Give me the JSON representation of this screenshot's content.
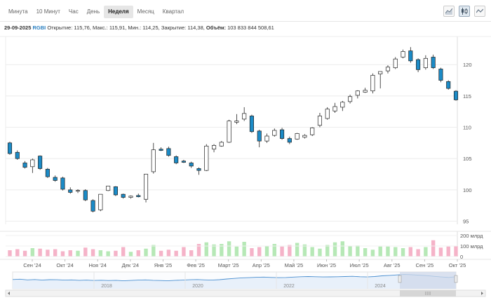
{
  "tabs": [
    {
      "label": "Минута",
      "active": false
    },
    {
      "label": "10 Минут",
      "active": false
    },
    {
      "label": "Час",
      "active": false
    },
    {
      "label": "День",
      "active": false
    },
    {
      "label": "Неделя",
      "active": true
    },
    {
      "label": "Месяц",
      "active": false
    },
    {
      "label": "Квартал",
      "active": false
    }
  ],
  "info": {
    "date": "29-09-2025",
    "ticker": "RGBI",
    "open_label": "Открытие:",
    "open": "115,76",
    "high_label": "Макс.:",
    "high": "115,91",
    "low_label": "Мин.:",
    "low": "114,25",
    "close_label": "Закрытие:",
    "close": "114,38",
    "volume_label": "Объём:",
    "volume": "103 833 844 508,61"
  },
  "icons": [
    "area-chart-icon",
    "candlestick-icon",
    "line-chart-icon"
  ],
  "colors": {
    "up_fill": "#ffffff",
    "down_fill": "#1b8bc7",
    "vol_up": "#b6e8b6",
    "vol_down": "#f5b3c8",
    "navigator_line": "#4a8fd0",
    "navigator_select": "#cfd8ea"
  },
  "chart_data": {
    "type": "candlestick",
    "title": "",
    "yticks": [
      "95",
      "100",
      "105",
      "110",
      "115",
      "120"
    ],
    "ylim": [
      94.5,
      124.5
    ],
    "xticks": [
      "Сен '24",
      "Окт '24",
      "Ноя '24",
      "Дек '24",
      "Янв '25",
      "Фев '25",
      "Март '25",
      "Апр '25",
      "Май '25",
      "Июн '25",
      "Июл '25",
      "Авг '25",
      "Сен '25",
      "Окт '25"
    ],
    "volume_ticks": [
      "0",
      "100 млрд",
      "200 млрд"
    ],
    "volume_max": 200,
    "candles": [
      {
        "o": 107.5,
        "h": 107.7,
        "l": 105.6,
        "c": 105.8
      },
      {
        "o": 106.0,
        "h": 106.3,
        "l": 104.8,
        "c": 105.0
      },
      {
        "o": 104.3,
        "h": 104.6,
        "l": 103.4,
        "c": 103.6
      },
      {
        "o": 103.7,
        "h": 105.0,
        "l": 102.7,
        "c": 104.8
      },
      {
        "o": 105.4,
        "h": 105.5,
        "l": 103.2,
        "c": 103.4
      },
      {
        "o": 103.3,
        "h": 103.5,
        "l": 101.9,
        "c": 102.1
      },
      {
        "o": 102.0,
        "h": 102.3,
        "l": 101.3,
        "c": 101.5
      },
      {
        "o": 101.9,
        "h": 102.1,
        "l": 99.9,
        "c": 100.1
      },
      {
        "o": 100.0,
        "h": 100.4,
        "l": 99.4,
        "c": 99.6
      },
      {
        "o": 99.8,
        "h": 100.1,
        "l": 99.5,
        "c": 99.9
      },
      {
        "o": 99.9,
        "h": 100.1,
        "l": 98.2,
        "c": 98.4
      },
      {
        "o": 98.3,
        "h": 98.5,
        "l": 96.4,
        "c": 96.6
      },
      {
        "o": 96.8,
        "h": 99.3,
        "l": 96.6,
        "c": 99.3
      },
      {
        "o": 99.9,
        "h": 100.6,
        "l": 99.8,
        "c": 100.6
      },
      {
        "o": 100.5,
        "h": 100.6,
        "l": 99.0,
        "c": 99.2
      },
      {
        "o": 99.3,
        "h": 99.4,
        "l": 98.6,
        "c": 98.8
      },
      {
        "o": 98.8,
        "h": 99.1,
        "l": 98.6,
        "c": 99.0
      },
      {
        "o": 99.1,
        "h": 99.4,
        "l": 98.8,
        "c": 98.9
      },
      {
        "o": 98.5,
        "h": 102.5,
        "l": 98.0,
        "c": 102.5
      },
      {
        "o": 102.9,
        "h": 107.5,
        "l": 102.6,
        "c": 106.4
      },
      {
        "o": 106.5,
        "h": 106.8,
        "l": 106.2,
        "c": 106.3
      },
      {
        "o": 106.6,
        "h": 106.9,
        "l": 105.3,
        "c": 105.5
      },
      {
        "o": 105.3,
        "h": 105.5,
        "l": 104.1,
        "c": 104.3
      },
      {
        "o": 104.6,
        "h": 104.8,
        "l": 104.3,
        "c": 104.4
      },
      {
        "o": 104.3,
        "h": 104.5,
        "l": 103.5,
        "c": 103.8
      },
      {
        "o": 103.4,
        "h": 103.6,
        "l": 102.4,
        "c": 103.1
      },
      {
        "o": 103.1,
        "h": 107.3,
        "l": 103.0,
        "c": 107.0
      },
      {
        "o": 106.5,
        "h": 107.3,
        "l": 106.0,
        "c": 107.1
      },
      {
        "o": 107.0,
        "h": 107.8,
        "l": 106.9,
        "c": 107.6
      },
      {
        "o": 107.6,
        "h": 111.2,
        "l": 107.5,
        "c": 111.0
      },
      {
        "o": 110.8,
        "h": 112.1,
        "l": 110.5,
        "c": 111.0
      },
      {
        "o": 111.3,
        "h": 113.2,
        "l": 111.0,
        "c": 112.2
      },
      {
        "o": 111.8,
        "h": 112.0,
        "l": 109.1,
        "c": 109.3
      },
      {
        "o": 109.4,
        "h": 109.6,
        "l": 106.8,
        "c": 107.8
      },
      {
        "o": 107.8,
        "h": 109.0,
        "l": 107.5,
        "c": 108.6
      },
      {
        "o": 108.7,
        "h": 109.8,
        "l": 108.5,
        "c": 109.5
      },
      {
        "o": 109.6,
        "h": 109.9,
        "l": 108.0,
        "c": 108.2
      },
      {
        "o": 108.2,
        "h": 108.5,
        "l": 107.3,
        "c": 107.6
      },
      {
        "o": 108.1,
        "h": 109.1,
        "l": 108.0,
        "c": 109.0
      },
      {
        "o": 108.4,
        "h": 108.9,
        "l": 108.2,
        "c": 108.7
      },
      {
        "o": 108.8,
        "h": 110.0,
        "l": 108.6,
        "c": 109.9
      },
      {
        "o": 110.3,
        "h": 112.3,
        "l": 110.0,
        "c": 111.8
      },
      {
        "o": 111.4,
        "h": 113.2,
        "l": 111.2,
        "c": 112.9
      },
      {
        "o": 112.6,
        "h": 113.9,
        "l": 112.3,
        "c": 113.3
      },
      {
        "o": 113.2,
        "h": 114.2,
        "l": 112.6,
        "c": 114.0
      },
      {
        "o": 114.1,
        "h": 115.2,
        "l": 113.8,
        "c": 114.9
      },
      {
        "o": 115.1,
        "h": 115.9,
        "l": 114.6,
        "c": 115.8
      },
      {
        "o": 115.6,
        "h": 116.3,
        "l": 115.5,
        "c": 115.9
      },
      {
        "o": 115.8,
        "h": 118.6,
        "l": 115.4,
        "c": 118.3
      },
      {
        "o": 118.5,
        "h": 118.9,
        "l": 116.2,
        "c": 118.9
      },
      {
        "o": 119.0,
        "h": 119.9,
        "l": 118.6,
        "c": 119.6
      },
      {
        "o": 119.5,
        "h": 121.2,
        "l": 119.3,
        "c": 120.9
      },
      {
        "o": 121.2,
        "h": 122.4,
        "l": 121.0,
        "c": 122.1
      },
      {
        "o": 122.2,
        "h": 122.8,
        "l": 120.3,
        "c": 120.6
      },
      {
        "o": 120.8,
        "h": 121.0,
        "l": 118.8,
        "c": 119.2
      },
      {
        "o": 119.5,
        "h": 121.5,
        "l": 119.2,
        "c": 121.0
      },
      {
        "o": 121.2,
        "h": 121.6,
        "l": 119.3,
        "c": 119.5
      },
      {
        "o": 119.3,
        "h": 119.5,
        "l": 117.2,
        "c": 117.5
      },
      {
        "o": 117.3,
        "h": 117.5,
        "l": 116.0,
        "c": 116.2
      },
      {
        "o": 115.76,
        "h": 115.91,
        "l": 114.25,
        "c": 114.38
      }
    ],
    "volume": [
      60,
      70,
      55,
      80,
      75,
      65,
      70,
      50,
      60,
      55,
      85,
      70,
      60,
      50,
      55,
      90,
      45,
      60,
      75,
      110,
      55,
      65,
      55,
      90,
      60,
      120,
      135,
      115,
      120,
      145,
      95,
      140,
      80,
      90,
      100,
      120,
      95,
      110,
      130,
      115,
      90,
      75,
      110,
      135,
      145,
      100,
      105,
      80,
      65,
      95,
      95,
      90,
      80,
      90,
      70,
      90,
      155,
      85,
      95,
      100
    ],
    "navigator": {
      "years": [
        "2018",
        "2020",
        "2022",
        "2024"
      ],
      "points": [
        0.55,
        0.52,
        0.58,
        0.55,
        0.6,
        0.56,
        0.57,
        0.6,
        0.58,
        0.62,
        0.6,
        0.63,
        0.61,
        0.64,
        0.62,
        0.66,
        0.63,
        0.6,
        0.58,
        0.62,
        0.64,
        0.66,
        0.62,
        0.6,
        0.57,
        0.55,
        0.58,
        0.6,
        0.56,
        0.5,
        0.45,
        0.4,
        0.38,
        0.35,
        0.33,
        0.36,
        0.38,
        0.37,
        0.33,
        0.3,
        0.28,
        0.3,
        0.32,
        0.31,
        0.3,
        0.28,
        0.26,
        0.3,
        0.32,
        0.28,
        0.22,
        0.18,
        0.14,
        0.1,
        0.12,
        0.16,
        0.2,
        0.26,
        0.32,
        0.36,
        0.3
      ]
    }
  }
}
